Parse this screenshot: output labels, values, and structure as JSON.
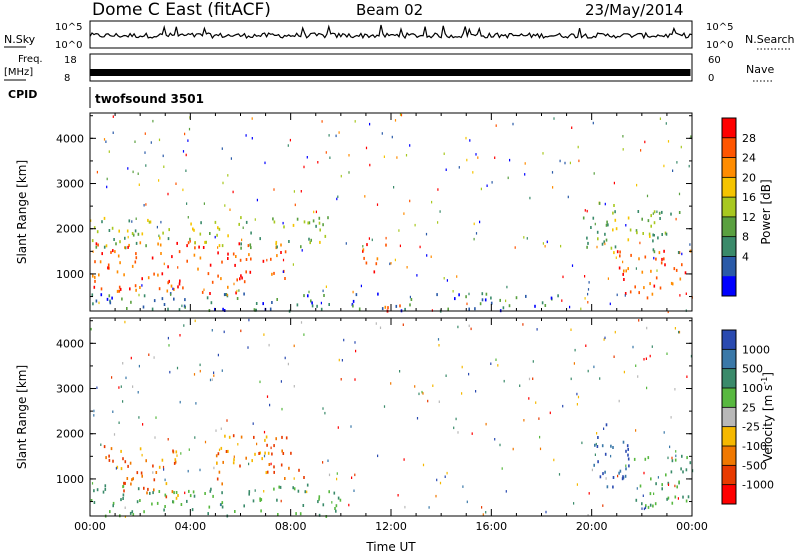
{
  "header": {
    "title": "Dome C East (fitACF)",
    "beam": "Beam 02",
    "date": "23/May/2014"
  },
  "top_panels": {
    "nsky": {
      "label": "N.Sky",
      "y_ticks": [
        "10^5",
        "10^0"
      ],
      "right_label": "N.Search",
      "right_ticks": [
        "10^5",
        "10^0"
      ]
    },
    "freq": {
      "label_line1": "Freq.",
      "label_line2": "[MHz]",
      "y_ticks": [
        "18",
        "8"
      ],
      "right_label": "Nave",
      "right_ticks": [
        "60",
        "0"
      ]
    },
    "cpid": {
      "label": "CPID",
      "value": "twofsound 3501"
    }
  },
  "chart_data": [
    {
      "type": "heatmap",
      "name": "Power",
      "ylabel": "Slant Range [km]",
      "xlim": [
        "00:00",
        "00:00"
      ],
      "ylim": [
        180,
        4560
      ],
      "y_ticks": [
        "4000",
        "3000",
        "2000",
        "1000"
      ],
      "colorbar": {
        "label": "Power [dB]",
        "ticks": [
          "28",
          "24",
          "20",
          "16",
          "12",
          "8",
          "4"
        ],
        "colors": [
          "#ff0000",
          "#ff5500",
          "#ff8c00",
          "#f5c400",
          "#a8c820",
          "#5aa040",
          "#3a8a6a",
          "#2a5aa8",
          "#0000ff"
        ]
      },
      "regions": [
        {
          "t": [
            0.0,
            6.5
          ],
          "r": [
            600,
            1800
          ],
          "level": "high"
        },
        {
          "t": [
            6.8,
            7.8
          ],
          "r": [
            800,
            1700
          ],
          "level": "high"
        },
        {
          "t": [
            10.8,
            11.8
          ],
          "r": [
            1000,
            1700
          ],
          "level": "high"
        },
        {
          "t": [
            10.5,
            12.5
          ],
          "r": [
            200,
            400
          ],
          "level": "high"
        },
        {
          "t": [
            21.0,
            24.0
          ],
          "r": [
            500,
            1600
          ],
          "level": "high"
        },
        {
          "t": [
            0.0,
            9.5
          ],
          "r": [
            1600,
            2300
          ],
          "level": "mid"
        },
        {
          "t": [
            19.5,
            23.5
          ],
          "r": [
            1500,
            2600
          ],
          "level": "mid"
        },
        {
          "t": [
            0.0,
            19.0
          ],
          "r": [
            200,
            600
          ],
          "level": "low"
        }
      ]
    },
    {
      "type": "heatmap",
      "name": "Velocity",
      "ylabel": "Slant Range [km]",
      "xlabel": "Time UT",
      "x_ticks": [
        "00:00",
        "04:00",
        "08:00",
        "12:00",
        "16:00",
        "20:00",
        "00:00"
      ],
      "xlim": [
        "00:00",
        "00:00"
      ],
      "ylim": [
        180,
        4560
      ],
      "y_ticks": [
        "4000",
        "3000",
        "2000",
        "1000"
      ],
      "colorbar": {
        "label": "Velocity [m s",
        "label_sup": "-1",
        "label_end": "]",
        "ticks": [
          "1000",
          "500",
          "100",
          "25",
          "-25",
          "-100",
          "-500",
          "-1000"
        ],
        "colors": [
          "#2a4ab0",
          "#3a78a8",
          "#3a8a6a",
          "#58b840",
          "#b8b8b8",
          "#f5b800",
          "#f07800",
          "#e83a00",
          "#ff0000"
        ]
      },
      "regions": [
        {
          "t": [
            0.5,
            3.5
          ],
          "r": [
            600,
            1800
          ],
          "level": "toward"
        },
        {
          "t": [
            5.0,
            8.5
          ],
          "r": [
            900,
            2000
          ],
          "level": "toward"
        },
        {
          "t": [
            0.0,
            10.0
          ],
          "r": [
            200,
            900
          ],
          "level": "slow"
        },
        {
          "t": [
            20.0,
            21.5
          ],
          "r": [
            800,
            2400
          ],
          "level": "away"
        },
        {
          "t": [
            21.5,
            24.0
          ],
          "r": [
            400,
            1600
          ],
          "level": "slow"
        }
      ]
    }
  ]
}
